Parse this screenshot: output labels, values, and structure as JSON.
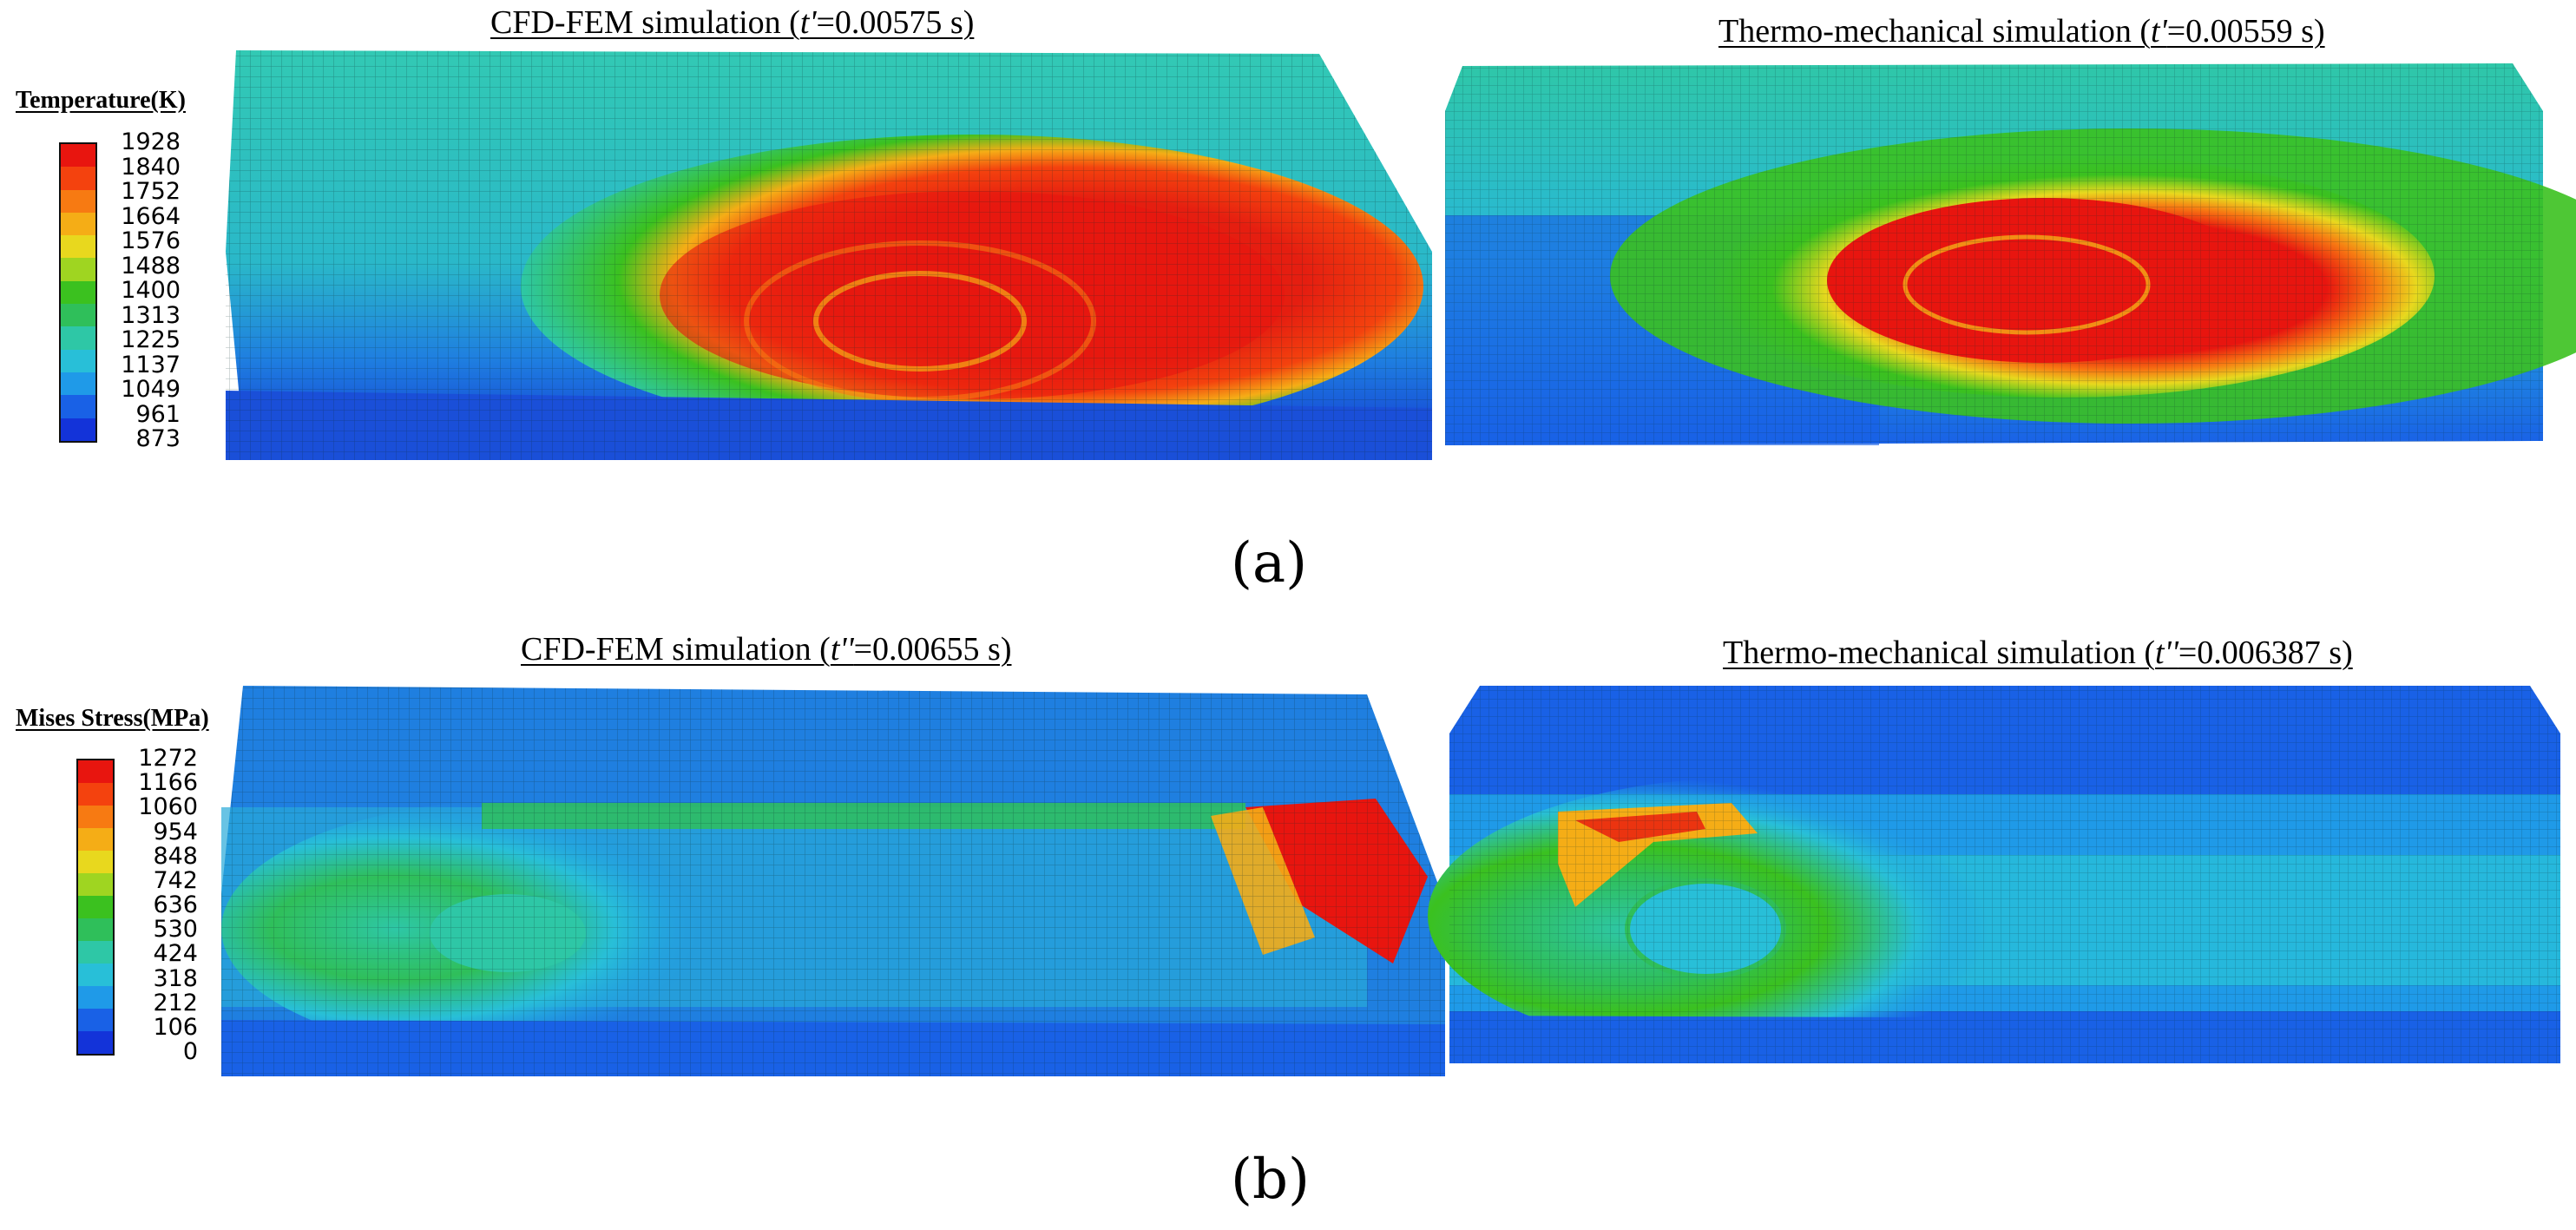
{
  "panels": {
    "a": {
      "caption": "(a)",
      "legend": {
        "title": "Temperature(K)",
        "ticks": [
          "1928",
          "1840",
          "1752",
          "1664",
          "1576",
          "1488",
          "1400",
          "1313",
          "1225",
          "1137",
          "1049",
          "961",
          "873"
        ],
        "colors": [
          "#e8150f",
          "#f4420e",
          "#f77a12",
          "#f5ad16",
          "#e8d81e",
          "#9fd521",
          "#3bc11f",
          "#2fbf5a",
          "#2ec7a6",
          "#28bfd8",
          "#1f9ae8",
          "#1961e6",
          "#1333d9"
        ]
      },
      "left": {
        "prefix": "CFD-FEM simulation (",
        "var": "t'",
        "suffix": "=0.00575 s)"
      },
      "right": {
        "prefix": "Thermo-mechanical simulation (",
        "var": "t'",
        "suffix": "=0.00559 s)"
      }
    },
    "b": {
      "caption": "(b)",
      "legend": {
        "title": "Mises Stress(MPa)",
        "ticks": [
          "1272",
          "1166",
          "1060",
          "954",
          "848",
          "742",
          "636",
          "530",
          "424",
          "318",
          "212",
          "106",
          "0"
        ],
        "colors": [
          "#e8150f",
          "#f4420e",
          "#f77a12",
          "#f5ad16",
          "#e8d81e",
          "#9fd521",
          "#3bc11f",
          "#2fbf5a",
          "#2ec7a6",
          "#28bfd8",
          "#1f9ae8",
          "#1961e6",
          "#1333d9"
        ]
      },
      "left": {
        "prefix": "CFD-FEM simulation (",
        "var": "t''",
        "suffix": "=0.00655 s)"
      },
      "right": {
        "prefix": "Thermo-mechanical simulation (",
        "var": "t''",
        "suffix": "=0.006387 s)"
      }
    }
  }
}
